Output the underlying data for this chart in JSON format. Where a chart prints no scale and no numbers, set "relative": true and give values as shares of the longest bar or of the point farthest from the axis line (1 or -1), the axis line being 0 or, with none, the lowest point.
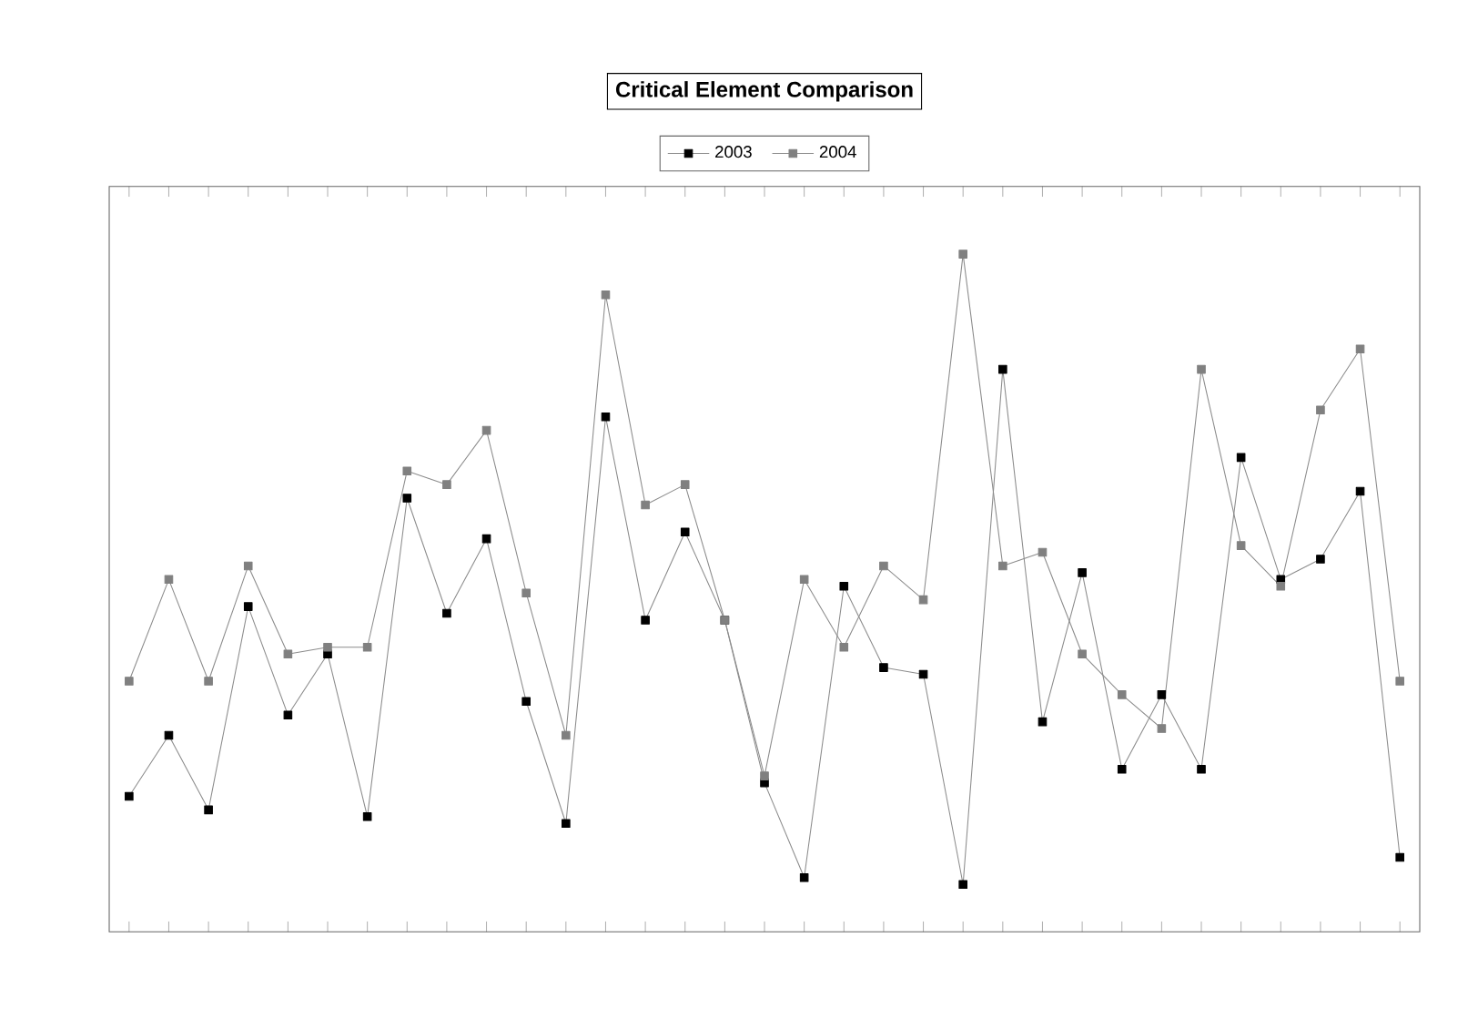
{
  "chart_data": {
    "type": "line",
    "title": "Critical Element Comparison",
    "relative": true,
    "legend": "top",
    "marker": "square",
    "line_style": "solid",
    "categories": [
      null,
      null,
      null,
      null,
      null,
      null,
      null,
      null,
      null,
      null,
      null,
      null,
      null,
      null,
      null,
      null,
      null,
      null,
      null,
      null,
      null,
      null,
      null,
      null,
      null,
      null,
      null,
      null,
      null,
      null,
      null,
      null,
      null
    ],
    "series": [
      {
        "name": "2003",
        "color": "#000000",
        "values": [
          0.2,
          0.29,
          0.18,
          0.48,
          0.32,
          0.41,
          0.17,
          0.64,
          0.47,
          0.58,
          0.34,
          0.16,
          0.76,
          0.46,
          0.59,
          0.46,
          0.22,
          0.08,
          0.51,
          0.39,
          0.38,
          0.07,
          0.83,
          0.31,
          0.53,
          0.24,
          0.35,
          0.24,
          0.7,
          0.52,
          0.55,
          0.65,
          0.11
        ]
      },
      {
        "name": "2004",
        "color": "#808080",
        "values": [
          0.37,
          0.52,
          0.37,
          0.54,
          0.41,
          0.42,
          0.42,
          0.68,
          0.66,
          0.74,
          0.5,
          0.29,
          0.94,
          0.63,
          0.66,
          0.46,
          0.23,
          0.52,
          0.42,
          0.54,
          0.49,
          1.0,
          0.54,
          0.56,
          0.41,
          0.35,
          0.3,
          0.83,
          0.57,
          0.51,
          0.77,
          0.86,
          0.37
        ]
      }
    ]
  }
}
